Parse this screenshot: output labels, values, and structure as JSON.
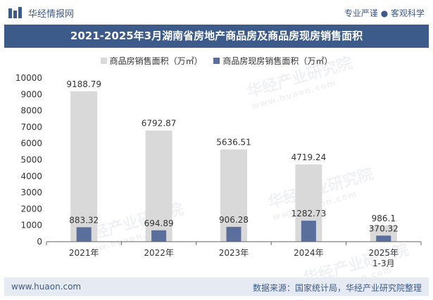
{
  "header": {
    "brand": "华经情报网",
    "slogan": "专业严谨 ● 客观科学"
  },
  "watermark": {
    "text": "华经产业研究院",
    "url": "www.huaon.com"
  },
  "colors": {
    "title_bg": "#3c5a8a",
    "sales_bar": "#d9d9d9",
    "spot_bar": "#5b6f9c",
    "footer_bg": "#e6ebf3"
  },
  "chart_data": {
    "type": "bar",
    "title": "2021-2025年3月湖南省房地产商品房及商品房现房销售面积",
    "categories": [
      "2021年",
      "2022年",
      "2023年",
      "2024年",
      "2025年\n1-3月"
    ],
    "series": [
      {
        "name": "商品房销售面积（万㎡）",
        "values": [
          9188.79,
          6792.87,
          5636.51,
          4719.24,
          986.1
        ],
        "labels": [
          "9188.79",
          "6792.87",
          "5636.51",
          "4719.24",
          "986.1"
        ]
      },
      {
        "name": "商品房现房销售面积（万㎡）",
        "values": [
          883.32,
          694.89,
          906.28,
          1282.73,
          370.32
        ],
        "labels": [
          "883.32",
          "694.89",
          "906.28",
          "1282.73",
          "370.32"
        ]
      }
    ],
    "ylim": [
      0,
      10000
    ],
    "yticks": [
      0,
      1000,
      2000,
      3000,
      4000,
      5000,
      6000,
      7000,
      8000,
      9000,
      10000
    ],
    "xlabel": "",
    "ylabel": "",
    "legend": "top-center",
    "grid": false
  },
  "footer": {
    "website": "www.huaon.com",
    "source": "数据来源：国家统计局，华经产业研究院整理"
  }
}
